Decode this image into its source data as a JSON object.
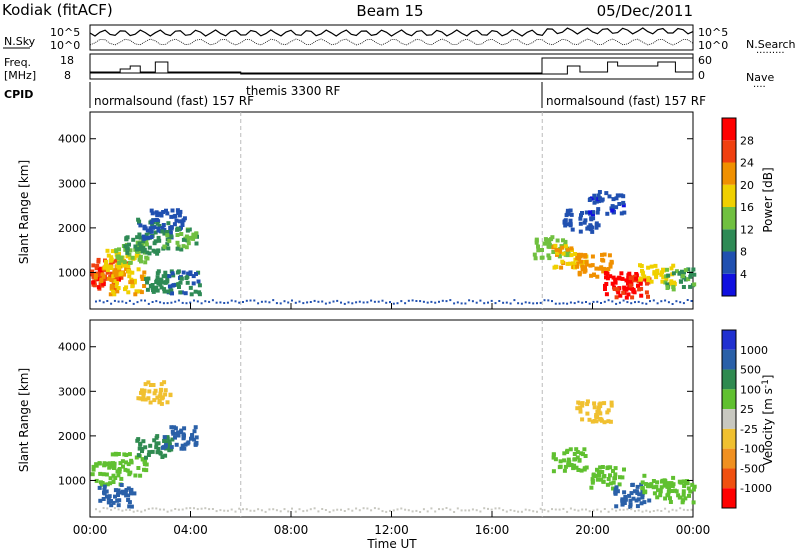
{
  "header": {
    "title": "Kodiak (fitACF)",
    "beam": "Beam 15",
    "date": "05/Dec/2011"
  },
  "status_panels": {
    "nsky_label": "N.Sky",
    "nsky_ticks": [
      "10^5",
      "10^0"
    ],
    "nsearch_label": "N.Search",
    "nsearch_ticks": [
      "10^5",
      "10^0"
    ],
    "freq_label_1": "Freq.",
    "freq_label_2": "[MHz]",
    "freq_ticks": [
      "18",
      "8"
    ],
    "nave_label": "Nave",
    "nave_ticks": [
      "60",
      "0"
    ],
    "cpid_label": "CPID",
    "programs": [
      {
        "name": "normalsound (fast)",
        "id": "157",
        "suffix": "RF",
        "start_hour": 0
      },
      {
        "name": "themis",
        "id": "3300",
        "suffix": "RF",
        "start_hour": 6
      },
      {
        "name": "normalsound (fast)",
        "id": "157",
        "suffix": "RF",
        "start_hour": 18
      }
    ]
  },
  "colors": {
    "power": [
      "#1010e0",
      "#2050b0",
      "#2e8a55",
      "#70c040",
      "#f0d000",
      "#f09000",
      "#f04010",
      "#ff0000"
    ],
    "velocity": [
      "#2030d0",
      "#2a60a8",
      "#2f8a50",
      "#60c030",
      "#c8c8c0",
      "#f0c030",
      "#f09020",
      "#f05010",
      "#ff0000"
    ]
  },
  "chart_data": [
    {
      "type": "heatmap",
      "name": "power",
      "ylabel": "Slant Range [km]",
      "xlabel": "",
      "x_range_hours": [
        0,
        24
      ],
      "ylim_km": [
        180,
        4600
      ],
      "yticks": [
        "4000",
        "3000",
        "2000",
        "1000"
      ],
      "ytick_values": [
        4000,
        3000,
        2000,
        1000
      ],
      "colorbar_label": "Power [dB]",
      "colorbar_ticks": [
        "28",
        "24",
        "20",
        "16",
        "12",
        "8",
        "4"
      ],
      "colorbar_range": [
        0,
        32
      ],
      "cells": [
        {
          "t": 0.2,
          "r": 1000,
          "v": 26
        },
        {
          "t": 0.5,
          "r": 900,
          "v": 28
        },
        {
          "t": 0.8,
          "r": 1100,
          "v": 24
        },
        {
          "t": 1.2,
          "r": 1300,
          "v": 18
        },
        {
          "t": 1.6,
          "r": 1500,
          "v": 14
        },
        {
          "t": 2.0,
          "r": 1700,
          "v": 10
        },
        {
          "t": 2.5,
          "r": 2000,
          "v": 8
        },
        {
          "t": 3.0,
          "r": 2200,
          "v": 6
        },
        {
          "t": 3.5,
          "r": 1800,
          "v": 12
        },
        {
          "t": 1.4,
          "r": 800,
          "v": 20
        },
        {
          "t": 2.8,
          "r": 850,
          "v": 10
        },
        {
          "t": 3.6,
          "r": 800,
          "v": 8
        },
        {
          "t": 18.3,
          "r": 1600,
          "v": 14
        },
        {
          "t": 19.0,
          "r": 1400,
          "v": 20
        },
        {
          "t": 20.0,
          "r": 1200,
          "v": 22
        },
        {
          "t": 21.0,
          "r": 800,
          "v": 30
        },
        {
          "t": 21.5,
          "r": 700,
          "v": 28
        },
        {
          "t": 22.5,
          "r": 1000,
          "v": 18
        },
        {
          "t": 23.5,
          "r": 900,
          "v": 12
        },
        {
          "t": 19.5,
          "r": 2200,
          "v": 6
        },
        {
          "t": 20.5,
          "r": 2600,
          "v": 5
        }
      ]
    },
    {
      "type": "heatmap",
      "name": "velocity",
      "ylabel": "Slant Range [km]",
      "xlabel": "Time UT",
      "x_range_hours": [
        0,
        24
      ],
      "ylim_km": [
        180,
        4600
      ],
      "yticks": [
        "4000",
        "3000",
        "2000",
        "1000"
      ],
      "ytick_values": [
        4000,
        3000,
        2000,
        1000
      ],
      "xticks": [
        "00:00",
        "04:00",
        "08:00",
        "12:00",
        "16:00",
        "20:00",
        "00:00"
      ],
      "xtick_hours": [
        0,
        4,
        8,
        12,
        16,
        20,
        24
      ],
      "colorbar_label": "Velocity [m s^-1]",
      "colorbar_ticks": [
        "1000",
        "500",
        "100",
        "25",
        "-25",
        "-100",
        "-500",
        "-1000"
      ],
      "cells": [
        {
          "t": 0.5,
          "r": 1200,
          "v": 0
        },
        {
          "t": 1.5,
          "r": 1400,
          "v": 10
        },
        {
          "t": 2.5,
          "r": 1800,
          "v": 60
        },
        {
          "t": 3.5,
          "r": 2000,
          "v": 150
        },
        {
          "t": 1.0,
          "r": 700,
          "v": 120
        },
        {
          "t": 2.5,
          "r": 3000,
          "v": -200
        },
        {
          "t": 19.0,
          "r": 1500,
          "v": 0
        },
        {
          "t": 20.5,
          "r": 1100,
          "v": 5
        },
        {
          "t": 21.5,
          "r": 700,
          "v": 200
        },
        {
          "t": 22.5,
          "r": 900,
          "v": -10
        },
        {
          "t": 23.5,
          "r": 800,
          "v": 0
        },
        {
          "t": 20.0,
          "r": 2600,
          "v": -300
        }
      ]
    }
  ]
}
